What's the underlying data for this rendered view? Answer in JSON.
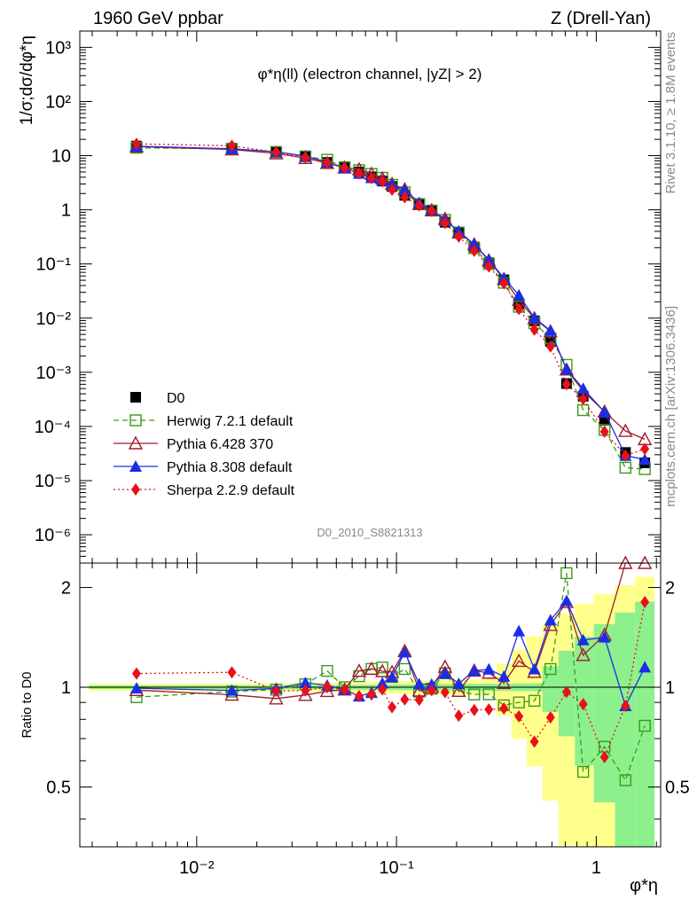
{
  "header": {
    "left": "1960 GeV ppbar",
    "right": "Z (Drell-Yan)"
  },
  "main_panel": {
    "title": "φ*η(ll) (electron channel, |yZ| > 2)",
    "ylabel": "1/σ;dσ/dφ*η",
    "analysis_id": "D0_2010_S8821313"
  },
  "ratio_panel": {
    "ylabel": "Ratio to D0"
  },
  "side_labels": {
    "rivet": "Rivet 3.1.10, ≥ 1.8M events",
    "mcplots": "mcplots.cern.ch [arXiv:1306.3436]"
  },
  "chart_data": {
    "type": "line",
    "xlabel": "φ*η",
    "xscale": "log",
    "yscale": "log",
    "xlim": [
      0.0026,
      2.1
    ],
    "ylim": [
      3e-07,
      2000
    ],
    "ratio_ylim": [
      0.33,
      2.37
    ],
    "x_tick_labels": [
      "10⁻²",
      "10⁻¹",
      "1"
    ],
    "y_tick_labels": [
      "10⁻⁶",
      "10⁻⁵",
      "10⁻⁴",
      "10⁻³",
      "10⁻²",
      "10⁻¹",
      "1",
      "10",
      "10²",
      "10³"
    ],
    "ratio_tick_labels": [
      "0.5",
      "1",
      "2"
    ],
    "x": [
      0.005,
      0.015,
      0.025,
      0.035,
      0.045,
      0.055,
      0.065,
      0.075,
      0.085,
      0.095,
      0.11,
      0.13,
      0.15,
      0.175,
      0.205,
      0.245,
      0.29,
      0.345,
      0.41,
      0.49,
      0.59,
      0.71,
      0.86,
      1.1,
      1.4,
      1.75
    ],
    "series": [
      {
        "name": "D0",
        "color": "#000000",
        "marker": "filled-square",
        "values": [
          15.0,
          13.7,
          11.9,
          9.5,
          7.5,
          6.1,
          5.0,
          4.05,
          3.4,
          2.7,
          1.85,
          1.31,
          0.98,
          0.59,
          0.39,
          0.205,
          0.105,
          0.051,
          0.018,
          0.0089,
          0.0037,
          0.00062,
          0.00036,
          0.00013,
          3.3e-05,
          2.13e-05
        ]
      },
      {
        "name": "Herwig 7.2.1 default",
        "color": "#3a9a1d",
        "marker": "open-square",
        "line": "dashed",
        "values": [
          14.0,
          13.3,
          11.7,
          9.7,
          8.4,
          6.1,
          5.4,
          4.6,
          3.9,
          2.9,
          2.1,
          1.27,
          0.97,
          0.65,
          0.38,
          0.195,
          0.1,
          0.045,
          0.0162,
          0.0081,
          0.0042,
          0.00137,
          0.0002,
          8.6e-05,
          1.73e-05,
          1.63e-05
        ]
      },
      {
        "name": "Pythia 6.428 370",
        "color": "#a01c2a",
        "marker": "open-triangle",
        "line": "solid",
        "values": [
          14.7,
          13.0,
          11.0,
          9.0,
          7.3,
          6.0,
          5.6,
          4.6,
          3.8,
          3.0,
          2.38,
          1.28,
          0.98,
          0.68,
          0.38,
          0.23,
          0.116,
          0.0525,
          0.0216,
          0.0099,
          0.0057,
          0.00112,
          0.00045,
          0.000187,
          8.25e-05,
          5.8e-05
        ]
      },
      {
        "name": "Pythia 8.308 default",
        "color": "#1a2ee6",
        "marker": "filled-triangle",
        "line": "solid",
        "values": [
          14.9,
          13.4,
          11.8,
          9.8,
          7.6,
          6.0,
          4.7,
          3.9,
          3.5,
          2.9,
          2.36,
          1.34,
          1.0,
          0.65,
          0.4,
          0.23,
          0.119,
          0.055,
          0.0266,
          0.0101,
          0.0059,
          0.00113,
          0.0005,
          0.000184,
          2.9e-05,
          2.45e-05
        ]
      },
      {
        "name": "Sherpa 2.2.9 default",
        "color": "#e8101a",
        "marker": "filled-diamond",
        "line": "dotted",
        "values": [
          16.5,
          15.2,
          11.6,
          9.3,
          7.5,
          6.0,
          4.7,
          3.85,
          3.35,
          2.35,
          1.7,
          1.2,
          0.96,
          0.57,
          0.32,
          0.175,
          0.09,
          0.044,
          0.0147,
          0.0061,
          0.003,
          0.0006,
          0.00032,
          8e-05,
          2.9e-05,
          3.85e-05
        ]
      }
    ]
  }
}
